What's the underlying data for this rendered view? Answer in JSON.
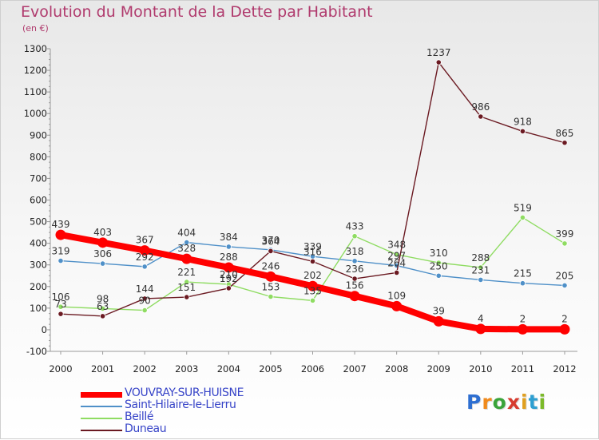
{
  "header": {
    "title": "Evolution du Montant de la Dette par Habitant",
    "subtitle": "(en €)"
  },
  "logo": {
    "text": "Proxiti",
    "colors": [
      "#2e6fd1",
      "#f08a1c",
      "#3aa43a",
      "#d63b2f",
      "#e0a020",
      "#2e9fd1",
      "#7cba2a"
    ]
  },
  "chart_data": {
    "type": "line",
    "title": "Evolution du Montant de la Dette par Habitant",
    "ylabel": "(en €)",
    "xlabel": "",
    "x": [
      "2000",
      "2001",
      "2002",
      "2003",
      "2004",
      "2005",
      "2006",
      "2007",
      "2008",
      "2009",
      "2010",
      "2011",
      "2012"
    ],
    "ylim": [
      -100,
      1300
    ],
    "yticks": [
      -100,
      0,
      100,
      200,
      300,
      400,
      500,
      600,
      700,
      800,
      900,
      1000,
      1100,
      1200,
      1300
    ],
    "grid": false,
    "legend": "bottom-left",
    "series": [
      {
        "name": "VOUVRAY-SUR-HUISNE",
        "color": "#ff0000",
        "values": [
          439,
          403,
          367,
          328,
          288,
          246,
          202,
          156,
          109,
          39,
          4,
          2,
          2
        ]
      },
      {
        "name": "Saint-Hilaire-le-Lierru",
        "color": "#4f90c8",
        "values": [
          319,
          306,
          292,
          404,
          384,
          370,
          339,
          318,
          297,
          250,
          231,
          215,
          205
        ]
      },
      {
        "name": "Beillé",
        "color": "#8fdc62",
        "values": [
          106,
          98,
          90,
          221,
          210,
          153,
          135,
          433,
          348,
          310,
          288,
          519,
          399
        ]
      },
      {
        "name": "Duneau",
        "color": "#6b1a22",
        "values": [
          73,
          63,
          144,
          151,
          192,
          364,
          316,
          236,
          264,
          1237,
          986,
          918,
          865
        ]
      }
    ]
  }
}
